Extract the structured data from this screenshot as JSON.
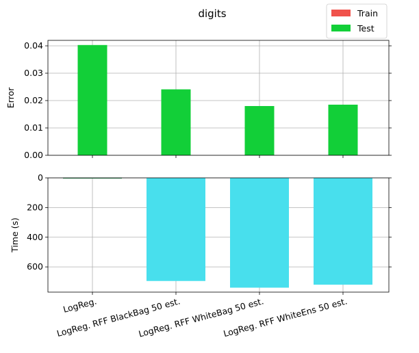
{
  "chart_data": {
    "title": "digits",
    "type": "bar",
    "categories": [
      "LogReg.",
      "LogReg. RFF BlackBag 50 est.",
      "LogReg. RFF WhiteBag 50 est.",
      "LogReg. RFF WhiteEns 50 est."
    ],
    "legend": {
      "placement": "top-right",
      "entries": [
        {
          "label": "Train",
          "color": "#f0524b"
        },
        {
          "label": "Test",
          "color": "#12cf38"
        }
      ]
    },
    "grid": true,
    "panels": [
      {
        "ylabel": "Error",
        "ylim": [
          0,
          0.042
        ],
        "yticks": [
          0.0,
          0.01,
          0.02,
          0.03,
          0.04
        ],
        "ytick_labels": [
          "0.00",
          "0.01",
          "0.02",
          "0.03",
          "0.04"
        ],
        "series": [
          {
            "name": "Train",
            "color": "#f0524b",
            "values": [
              0,
              0,
              0,
              0
            ]
          },
          {
            "name": "Test",
            "color": "#12cf38",
            "values": [
              0.0403,
              0.0241,
              0.018,
              0.0185
            ]
          }
        ]
      },
      {
        "ylabel": "Time (s)",
        "ylim": [
          0,
          770
        ],
        "inverted": true,
        "yticks": [
          0,
          200,
          400,
          600
        ],
        "ytick_labels": [
          "0",
          "200",
          "400",
          "600"
        ],
        "series": [
          {
            "color": "#48dfed",
            "values": [
              3,
              695,
              740,
              720
            ]
          }
        ]
      }
    ]
  }
}
